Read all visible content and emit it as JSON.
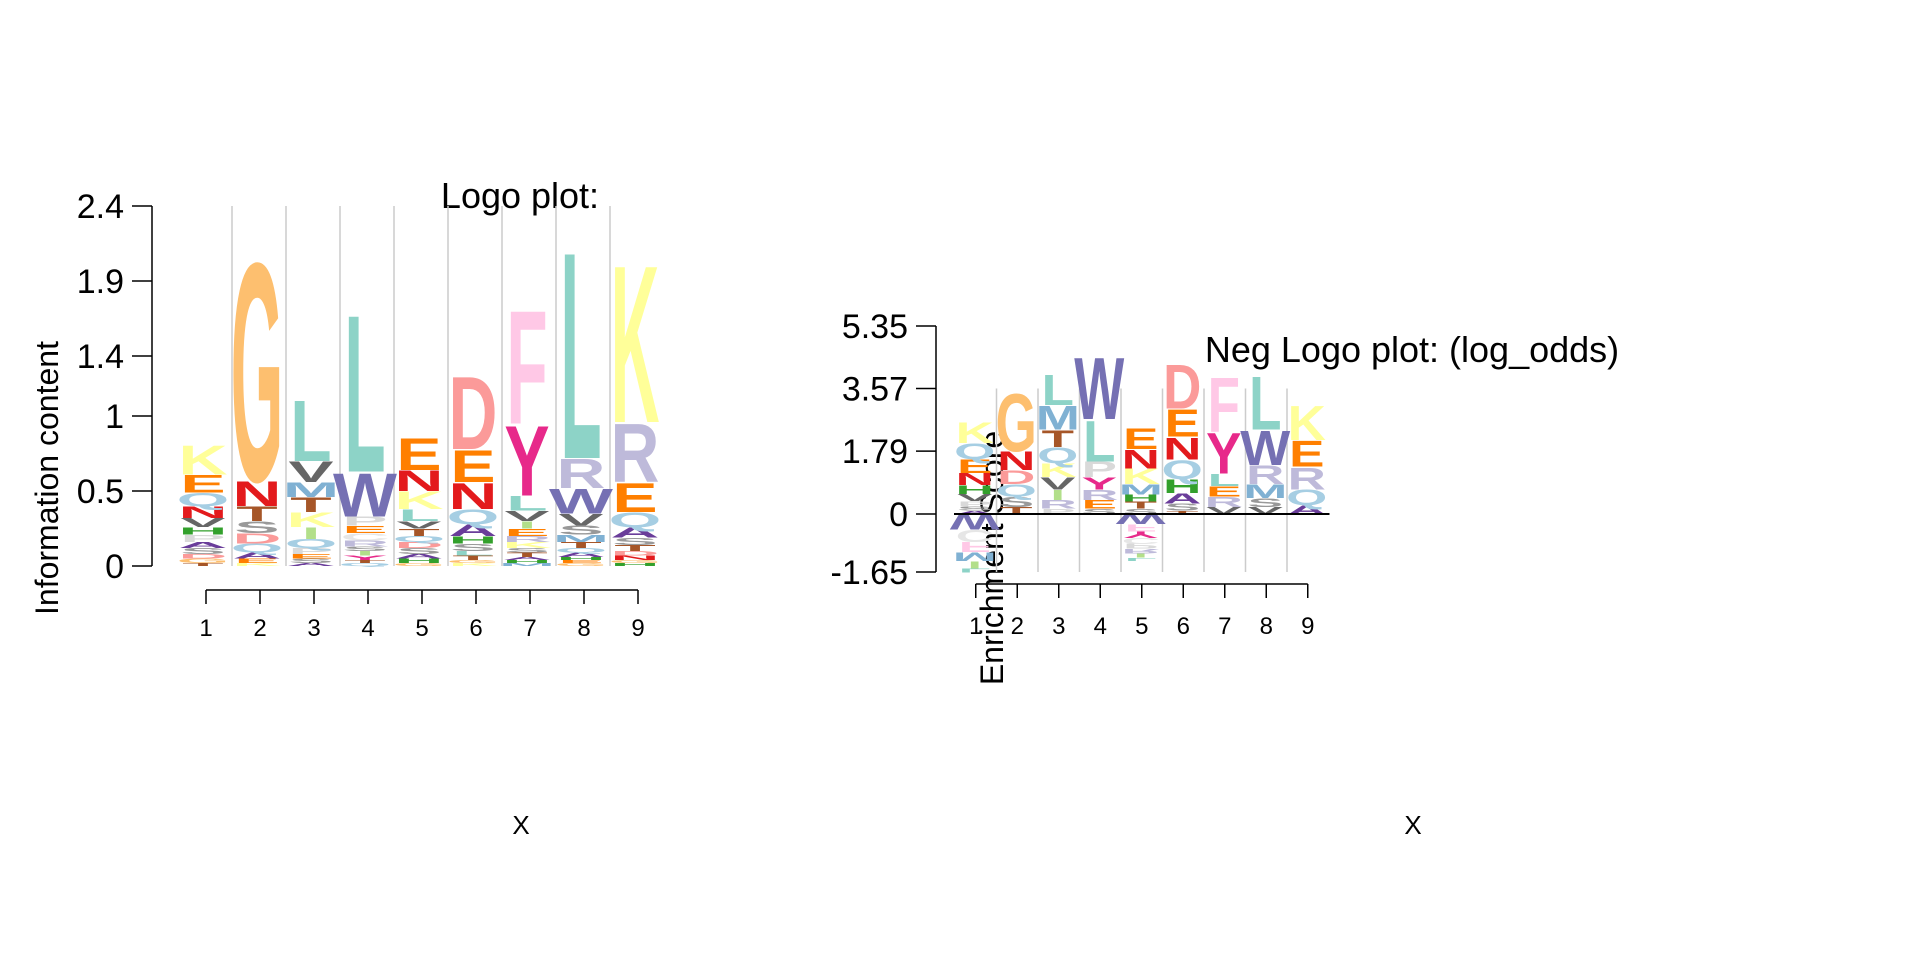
{
  "chart_data": [
    {
      "type": "logo",
      "title": "Logo plot:",
      "xlabel": "X",
      "ylabel": "Information content",
      "ylim": [
        0,
        2.4
      ],
      "ytick_labels": [
        "0",
        "0.5",
        "1",
        "1.4",
        "1.9",
        "2.4"
      ],
      "ytick_values": [
        0,
        0.5,
        1,
        1.4,
        1.9,
        2.4
      ],
      "categories": [
        "1",
        "2",
        "3",
        "4",
        "5",
        "6",
        "7",
        "8",
        "9"
      ],
      "grid": "vertical separators",
      "positions": [
        {
          "x": "1",
          "letters": [
            [
              "K",
              0.2
            ],
            [
              "E",
              0.12
            ],
            [
              "Q",
              0.09
            ],
            [
              "N",
              0.08
            ],
            [
              "V",
              0.06
            ],
            [
              "P",
              0.05
            ],
            [
              "H",
              0.05
            ],
            [
              "S",
              0.04
            ],
            [
              "A",
              0.04
            ],
            [
              "G",
              0.03
            ],
            [
              "D",
              0.03
            ],
            [
              "T",
              0.02
            ]
          ]
        },
        {
          "x": "2",
          "letters": [
            [
              "G",
              1.5
            ],
            [
              "N",
              0.17
            ],
            [
              "T",
              0.1
            ],
            [
              "S",
              0.08
            ],
            [
              "D",
              0.07
            ],
            [
              "Q",
              0.06
            ],
            [
              "A",
              0.04
            ],
            [
              "E",
              0.03
            ],
            [
              "K",
              0.02
            ]
          ]
        },
        {
          "x": "3",
          "letters": [
            [
              "L",
              0.42
            ],
            [
              "V",
              0.14
            ],
            [
              "K",
              0.1
            ],
            [
              "T",
              0.1
            ],
            [
              "I",
              0.08
            ],
            [
              "M",
              0.1
            ],
            [
              "Q",
              0.06
            ],
            [
              "P",
              0.04
            ],
            [
              "S",
              0.03
            ],
            [
              "E",
              0.03
            ],
            [
              "A",
              0.02
            ]
          ]
        },
        {
          "x": "4",
          "letters": [
            [
              "L",
              1.08
            ],
            [
              "W",
              0.3
            ],
            [
              "P",
              0.06
            ],
            [
              "C",
              0.05
            ],
            [
              "E",
              0.05
            ],
            [
              "R",
              0.04
            ],
            [
              "Y",
              0.03
            ],
            [
              "I",
              0.03
            ],
            [
              "S",
              0.03
            ],
            [
              "Q",
              0.02
            ],
            [
              "T",
              0.02
            ]
          ]
        },
        {
          "x": "5",
          "letters": [
            [
              "E",
              0.22
            ],
            [
              "K",
              0.12
            ],
            [
              "N",
              0.14
            ],
            [
              "L",
              0.08
            ],
            [
              "T",
              0.05
            ],
            [
              "S",
              0.04
            ],
            [
              "V",
              0.05
            ],
            [
              "D",
              0.04
            ],
            [
              "Q",
              0.04
            ],
            [
              "H",
              0.03
            ],
            [
              "A",
              0.03
            ],
            [
              "G",
              0.02
            ]
          ]
        },
        {
          "x": "6",
          "letters": [
            [
              "D",
              0.5
            ],
            [
              "E",
              0.22
            ],
            [
              "N",
              0.18
            ],
            [
              "Q",
              0.1
            ],
            [
              "A",
              0.08
            ],
            [
              "S",
              0.05
            ],
            [
              "H",
              0.05
            ],
            [
              "T",
              0.03
            ],
            [
              "L",
              0.03
            ],
            [
              "K",
              0.02
            ],
            [
              "G",
              0.02
            ]
          ]
        },
        {
          "x": "7",
          "letters": [
            [
              "F",
              0.78
            ],
            [
              "Y",
              0.48
            ],
            [
              "L",
              0.1
            ],
            [
              "V",
              0.07
            ],
            [
              "E",
              0.05
            ],
            [
              "I",
              0.05
            ],
            [
              "K",
              0.04
            ],
            [
              "R",
              0.04
            ],
            [
              "T",
              0.03
            ],
            [
              "S",
              0.03
            ],
            [
              "M",
              0.02
            ],
            [
              "H",
              0.02
            ],
            [
              "A",
              0.02
            ]
          ]
        },
        {
          "x": "8",
          "letters": [
            [
              "L",
              1.42
            ],
            [
              "R",
              0.2
            ],
            [
              "W",
              0.17
            ],
            [
              "V",
              0.08
            ],
            [
              "S",
              0.06
            ],
            [
              "T",
              0.04
            ],
            [
              "M",
              0.05
            ],
            [
              "A",
              0.03
            ],
            [
              "Q",
              0.03
            ],
            [
              "G",
              0.02
            ],
            [
              "E",
              0.02
            ],
            [
              "H",
              0.02
            ]
          ]
        },
        {
          "x": "9",
          "letters": [
            [
              "K",
              1.08
            ],
            [
              "R",
              0.4
            ],
            [
              "E",
              0.2
            ],
            [
              "Q",
              0.1
            ],
            [
              "A",
              0.07
            ],
            [
              "S",
              0.05
            ],
            [
              "T",
              0.04
            ],
            [
              "N",
              0.03
            ],
            [
              "D",
              0.03
            ],
            [
              "H",
              0.02
            ],
            [
              "G",
              0.02
            ]
          ]
        }
      ]
    },
    {
      "type": "logo",
      "title": "Neg Logo plot: (log_odds)",
      "xlabel": "X",
      "ylabel": "Enrichment Score",
      "ylim": [
        -1.65,
        5.35
      ],
      "ytick_labels": [
        "-1.65",
        "0",
        "1.79",
        "3.57",
        "5.35"
      ],
      "ytick_values": [
        -1.65,
        0,
        1.79,
        3.57,
        5.35
      ],
      "categories": [
        "1",
        "2",
        "3",
        "4",
        "5",
        "6",
        "7",
        "8",
        "9"
      ],
      "grid": "vertical separators",
      "positions": [
        {
          "x": "1",
          "pos": [
            [
              "K",
              0.6
            ],
            [
              "Q",
              0.45
            ],
            [
              "E",
              0.4
            ],
            [
              "N",
              0.35
            ],
            [
              "H",
              0.25
            ],
            [
              "V",
              0.2
            ],
            [
              "P",
              0.15
            ],
            [
              "S",
              0.12
            ],
            [
              "A",
              0.1
            ]
          ],
          "neg": [
            [
              "W",
              0.45
            ],
            [
              "C",
              0.35
            ],
            [
              "F",
              0.3
            ],
            [
              "M",
              0.25
            ],
            [
              "I",
              0.2
            ],
            [
              "L",
              0.12
            ]
          ]
        },
        {
          "x": "2",
          "pos": [
            [
              "G",
              1.7
            ],
            [
              "N",
              0.55
            ],
            [
              "D",
              0.4
            ],
            [
              "Q",
              0.35
            ],
            [
              "S",
              0.3
            ],
            [
              "T",
              0.2
            ]
          ],
          "neg": []
        },
        {
          "x": "3",
          "pos": [
            [
              "L",
              0.9
            ],
            [
              "M",
              0.7
            ],
            [
              "T",
              0.5
            ],
            [
              "Q",
              0.45
            ],
            [
              "K",
              0.4
            ],
            [
              "V",
              0.35
            ],
            [
              "I",
              0.3
            ],
            [
              "R",
              0.25
            ],
            [
              "P",
              0.15
            ]
          ],
          "neg": []
        },
        {
          "x": "4",
          "pos": [
            [
              "W",
              1.8
            ],
            [
              "L",
              1.2
            ],
            [
              "P",
              0.45
            ],
            [
              "Y",
              0.35
            ],
            [
              "R",
              0.3
            ],
            [
              "E",
              0.25
            ],
            [
              "S",
              0.15
            ]
          ],
          "neg": []
        },
        {
          "x": "5",
          "pos": [
            [
              "E",
              0.6
            ],
            [
              "N",
              0.55
            ],
            [
              "K",
              0.45
            ],
            [
              "M",
              0.3
            ],
            [
              "T",
              0.2
            ],
            [
              "H",
              0.2
            ],
            [
              "S",
              0.15
            ]
          ],
          "neg": [
            [
              "W",
              0.3
            ],
            [
              "F",
              0.2
            ],
            [
              "Y",
              0.18
            ],
            [
              "C",
              0.16
            ],
            [
              "P",
              0.15
            ],
            [
              "R",
              0.14
            ],
            [
              "I",
              0.12
            ],
            [
              "L",
              0.1
            ]
          ]
        },
        {
          "x": "6",
          "pos": [
            [
              "D",
              1.3
            ],
            [
              "E",
              0.8
            ],
            [
              "N",
              0.65
            ],
            [
              "Q",
              0.55
            ],
            [
              "H",
              0.4
            ],
            [
              "A",
              0.3
            ],
            [
              "S",
              0.2
            ],
            [
              "T",
              0.1
            ]
          ],
          "neg": []
        },
        {
          "x": "7",
          "pos": [
            [
              "F",
              1.6
            ],
            [
              "Y",
              1.2
            ],
            [
              "L",
              0.35
            ],
            [
              "R",
              0.3
            ],
            [
              "E",
              0.3
            ],
            [
              "V",
              0.2
            ]
          ],
          "neg": []
        },
        {
          "x": "8",
          "pos": [
            [
              "L",
              1.55
            ],
            [
              "W",
              1.0
            ],
            [
              "R",
              0.55
            ],
            [
              "M",
              0.4
            ],
            [
              "S",
              0.25
            ],
            [
              "V",
              0.2
            ]
          ],
          "neg": []
        },
        {
          "x": "9",
          "pos": [
            [
              "K",
              1.0
            ],
            [
              "R",
              0.65
            ],
            [
              "E",
              0.75
            ],
            [
              "Q",
              0.45
            ],
            [
              "A",
              0.25
            ]
          ],
          "neg": []
        }
      ]
    }
  ],
  "letter_colors": {
    "A": "#6a3d9a",
    "C": "#e6e6e6",
    "D": "#fb9a99",
    "E": "#ff7f00",
    "F": "#ffc8e6",
    "G": "#fdbf6f",
    "H": "#33a02c",
    "I": "#b2df8a",
    "K": "#ffff99",
    "L": "#8dd3c7",
    "M": "#80b1d3",
    "N": "#e31a1c",
    "P": "#d9d9d9",
    "Q": "#a6cee3",
    "R": "#bebada",
    "S": "#999999",
    "T": "#a65628",
    "V": "#666666",
    "W": "#7570b3",
    "Y": "#e7298a"
  }
}
